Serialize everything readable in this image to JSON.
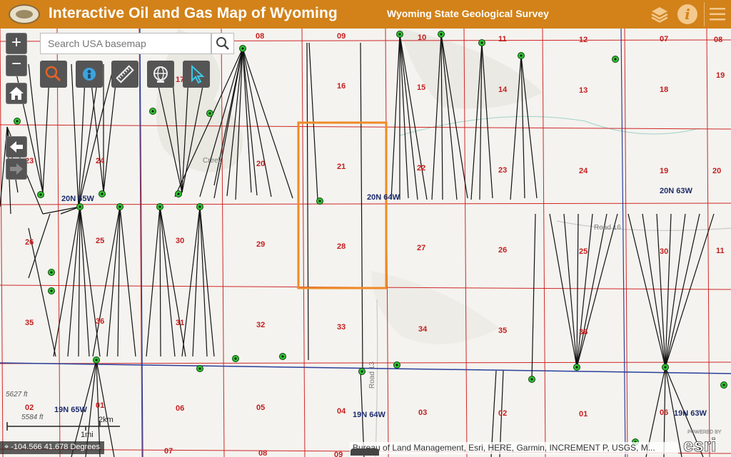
{
  "header": {
    "title": "Interactive Oil and Gas Map of Wyoming",
    "agency": "Wyoming State Geological Survey",
    "icons": [
      "logo-seal",
      "layers-icon",
      "info-icon",
      "menu-icon"
    ],
    "info_glyph": "i",
    "color": "#d28219"
  },
  "search": {
    "placeholder": "Search USA basemap",
    "value": ""
  },
  "controls": {
    "zoom_in": "+",
    "zoom_out": "−",
    "home": "home-icon",
    "back": "arrow-left-icon",
    "forward": "arrow-right-icon"
  },
  "toolbar": [
    "search-map-icon",
    "identify-icon",
    "measure-icon",
    "basemap-globe-icon",
    "select-pointer-icon"
  ],
  "map": {
    "sections": [
      "08",
      "09",
      "10",
      "11",
      "12",
      "07",
      "08",
      "16",
      "15",
      "14",
      "13",
      "18",
      "23",
      "24",
      "20",
      "21",
      "22",
      "23",
      "24",
      "19",
      "20",
      "26",
      "25",
      "30",
      "29",
      "28",
      "27",
      "26",
      "25",
      "30",
      "35",
      "36",
      "31",
      "32",
      "33",
      "34",
      "35",
      "36",
      "02",
      "01",
      "06",
      "05",
      "04",
      "03",
      "02",
      "01",
      "06",
      "07",
      "08",
      "09",
      "17",
      "19",
      "11"
    ],
    "townships": [
      "20N 65W",
      "20N 64W",
      "20N 63W",
      "19N 65W",
      "19N 64W",
      "19N 63W"
    ],
    "elevations": [
      "5627 ft",
      "5584 ft"
    ],
    "roads": [
      "Road 16",
      "Road 13",
      "Creek"
    ],
    "colors": {
      "section_line": "#d02727",
      "township_line": "#2a3f9c",
      "selection": "#f08a24",
      "well_marker": "#2fc22f"
    }
  },
  "scalebar": {
    "metric": "2km",
    "imperial": "1mi"
  },
  "coordinates": {
    "text": "-104.566 41.678 Degrees"
  },
  "attribution": "Bureau of Land Management, Esri, HERE, Garmin, INCREMENT P, USGS, M...",
  "esri": {
    "text": "esri",
    "powered": "POWERED BY"
  }
}
